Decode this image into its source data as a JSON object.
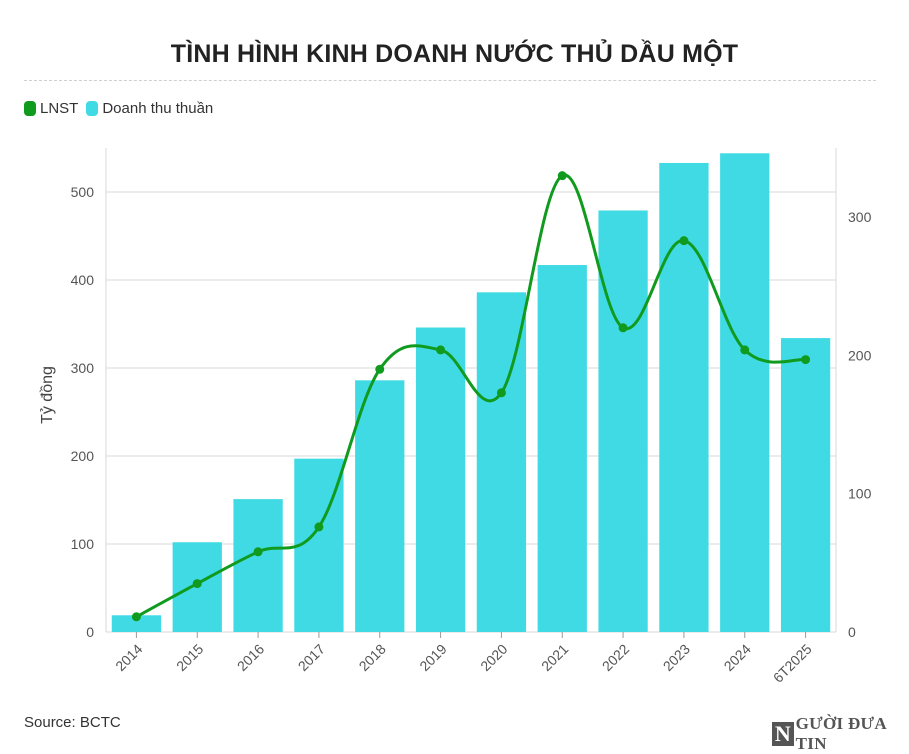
{
  "title": "TÌNH HÌNH KINH DOANH NƯỚC THỦ DẦU MỘT",
  "source": "Source: BCTC",
  "logo": {
    "letter": "N",
    "text": "GƯỜI ĐƯA TIN"
  },
  "colors": {
    "bar": "#40dae4",
    "line": "#119b1e",
    "grid": "#d9d9d9"
  },
  "chart_data": {
    "type": "bar",
    "categories": [
      "2014",
      "2015",
      "2016",
      "2017",
      "2018",
      "2019",
      "2020",
      "2021",
      "2022",
      "2023",
      "2024",
      "6T2025"
    ],
    "series": [
      {
        "name": "LNST",
        "type": "line",
        "axis": "right",
        "color": "#119b1e",
        "values": [
          11,
          35,
          58,
          76,
          190,
          204,
          173,
          330,
          220,
          283,
          204,
          197
        ]
      },
      {
        "name": "Doanh thu thuần",
        "type": "bar",
        "axis": "left",
        "color": "#40dae4",
        "values": [
          19,
          102,
          151,
          197,
          286,
          346,
          386,
          417,
          479,
          533,
          544,
          334
        ]
      }
    ],
    "ylabel": "Tỷ đồng",
    "ylim": [
      0,
      550
    ],
    "yticks": [
      "0",
      "100",
      "200",
      "300",
      "400",
      "500"
    ],
    "y2lim": [
      0,
      350
    ],
    "y2ticks": [
      "0",
      "100",
      "200",
      "300"
    ],
    "grid": true,
    "legend": "top-left"
  }
}
